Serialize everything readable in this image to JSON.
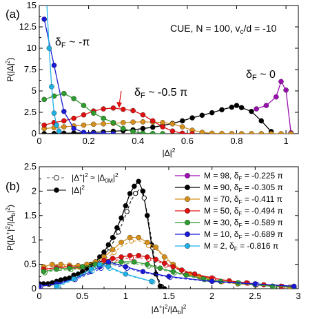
{
  "chart_data": [
    {
      "type": "line",
      "panel_label": "(a)",
      "annotation": "CUE, N = 100,  v_c/d = -10",
      "xlabel": "|Δ|²",
      "ylabel": "P(|Δ|²)",
      "xlim": [
        0,
        1.05
      ],
      "ylim": [
        0,
        15
      ],
      "xticks": [
        "0",
        "0.2",
        "0.4",
        "0.6",
        "0.8",
        "1"
      ],
      "yticks": [
        "0",
        "2.5",
        "5",
        "7.5",
        "10",
        "12.5",
        "15"
      ],
      "annotations": [
        {
          "text": "δ_F ~ -π",
          "color": "#1fb1e6"
        },
        {
          "text": "δ_F ~ -0.5 π",
          "color": "#e01010"
        },
        {
          "text": "δ_F ~ 0",
          "color": "#9b0fb0"
        }
      ],
      "series": [
        {
          "color": "#9b0fb0",
          "x": [
            0.88,
            0.92,
            0.96,
            0.98,
            1.0,
            1.02
          ],
          "y": [
            2.9,
            3.3,
            4.3,
            6.1,
            5.1,
            0.1
          ]
        },
        {
          "color": "#000000",
          "x": [
            0.02,
            0.06,
            0.1,
            0.14,
            0.18,
            0.22,
            0.26,
            0.3,
            0.34,
            0.38,
            0.42,
            0.46,
            0.5,
            0.54,
            0.58,
            0.62,
            0.66,
            0.7,
            0.74,
            0.78,
            0.8,
            0.82,
            0.86,
            0.9,
            0.94
          ],
          "y": [
            0,
            0.02,
            0.05,
            0.08,
            0.1,
            0.15,
            0.2,
            0.28,
            0.35,
            0.45,
            0.6,
            0.75,
            0.95,
            1.2,
            1.5,
            1.85,
            2.15,
            2.45,
            2.8,
            3.1,
            3.3,
            3.05,
            2.6,
            1.5,
            0.25
          ]
        },
        {
          "color": "#d68f1a",
          "x": [
            0.02,
            0.06,
            0.1,
            0.14,
            0.18,
            0.22,
            0.26,
            0.3,
            0.34,
            0.38,
            0.42,
            0.46,
            0.5,
            0.54,
            0.58,
            0.62,
            0.66,
            0.7,
            0.74,
            0.78,
            0.82,
            0.86,
            0.9,
            0.94,
            0.98,
            1.02
          ],
          "y": [
            0.6,
            0.7,
            0.8,
            0.9,
            1.0,
            1.1,
            1.15,
            1.2,
            1.3,
            1.35,
            1.38,
            1.35,
            1.3,
            1.15,
            0.8,
            0.4,
            0.15,
            0.05,
            0.02,
            0.01,
            0,
            0,
            0,
            0,
            0,
            0
          ]
        },
        {
          "color": "#e01010",
          "x": [
            0.02,
            0.06,
            0.1,
            0.14,
            0.18,
            0.22,
            0.26,
            0.3,
            0.34,
            0.38,
            0.42,
            0.46,
            0.5,
            0.54,
            0.58,
            0.62
          ],
          "y": [
            1.0,
            1.3,
            1.5,
            1.8,
            2.2,
            2.65,
            2.9,
            3.0,
            2.85,
            2.7,
            2.2,
            1.5,
            0.8,
            0.3,
            0.05,
            0
          ]
        },
        {
          "color": "#2e9b2e",
          "x": [
            0.02,
            0.06,
            0.1,
            0.14,
            0.18,
            0.22,
            0.26,
            0.3,
            0.34,
            0.38,
            0.42,
            0.46,
            0.5
          ],
          "y": [
            4.0,
            4.4,
            4.7,
            4.1,
            3.3,
            2.4,
            1.8,
            1.3,
            0.6,
            0.25,
            0.05,
            0.02,
            0
          ]
        },
        {
          "color": "#1919d6",
          "x": [
            0.02,
            0.06,
            0.1,
            0.14,
            0.18,
            0.22,
            0.26,
            0.3
          ],
          "y": [
            13.4,
            8.0,
            2.6,
            0.6,
            0.15,
            0.05,
            0.02,
            0
          ]
        },
        {
          "color": "#1fb1e6",
          "x": [
            0.03,
            0.04,
            0.05,
            0.06,
            0.07,
            0.08
          ],
          "y": [
            15.5,
            10.0,
            5.5,
            2.4,
            1.0,
            0.3
          ]
        }
      ]
    },
    {
      "type": "line",
      "panel_label": "(b)",
      "xlabel": "|Δ⁺|²/|Δ_b|²",
      "ylabel": "P(|Δ⁺|²/|Δ_b|²)",
      "xlim": [
        0,
        3
      ],
      "ylim": [
        0,
        2.5
      ],
      "xticks": [
        "0",
        "0.5",
        "1",
        "1.5",
        "2",
        "2.5",
        "3"
      ],
      "yticks": [
        "0",
        "0.5",
        "1",
        "1.5",
        "2",
        "2.5"
      ],
      "legend_left": [
        {
          "label": "|Δ⁺|² ≈ |Δ_0M|²",
          "style": "dashed-open"
        },
        {
          "label": "|Δ|²",
          "style": "solid-filled"
        }
      ],
      "legend_right": [
        {
          "label": "M = 98, δ_F = -0.225 π",
          "color": "#9b0fb0"
        },
        {
          "label": "M = 90, δ_F = -0.305 π",
          "color": "#000000"
        },
        {
          "label": "M = 70, δ_F = -0.411 π",
          "color": "#d68f1a"
        },
        {
          "label": "M = 50, δ_F = -0.494 π",
          "color": "#e01010"
        },
        {
          "label": "M = 30, δ_F = -0.589 π",
          "color": "#2e9b2e"
        },
        {
          "label": "M = 10, δ_F = -0.689 π",
          "color": "#1919d6"
        },
        {
          "label": "M =   2, δ_F = -0.816 π",
          "color": "#1fb1e6"
        }
      ],
      "series": [
        {
          "name": "M = 90",
          "color": "#000000",
          "x": [
            0.0,
            0.05,
            0.1,
            0.15,
            0.2,
            0.25,
            0.3,
            0.35,
            0.4,
            0.45,
            0.5,
            0.55,
            0.6,
            0.65,
            0.7,
            0.75,
            0.8,
            0.85,
            0.9,
            0.95,
            1.0,
            1.05,
            1.1,
            1.15,
            1.2,
            1.25,
            1.3,
            1.35,
            1.4,
            1.45
          ],
          "y": [
            0.1,
            0.1,
            0.1,
            0.12,
            0.15,
            0.18,
            0.2,
            0.22,
            0.28,
            0.3,
            0.35,
            0.42,
            0.5,
            0.55,
            0.65,
            0.75,
            0.9,
            1.05,
            1.25,
            1.45,
            1.7,
            1.95,
            2.1,
            2.2,
            2.0,
            1.5,
            0.9,
            0.3,
            0.05,
            0.0
          ]
        },
        {
          "name": "M = 70",
          "color": "#d68f1a",
          "x": [
            0.05,
            0.15,
            0.25,
            0.35,
            0.45,
            0.55,
            0.65,
            0.75,
            0.85,
            0.95,
            1.05,
            1.15,
            1.25,
            1.35,
            1.45,
            1.55,
            1.65,
            1.75,
            1.85,
            1.95,
            2.1,
            2.3,
            2.5,
            2.7,
            2.9
          ],
          "y": [
            0.45,
            0.5,
            0.5,
            0.48,
            0.47,
            0.5,
            0.55,
            0.65,
            0.8,
            0.95,
            1.05,
            1.05,
            0.95,
            0.85,
            0.65,
            0.5,
            0.38,
            0.3,
            0.25,
            0.2,
            0.15,
            0.1,
            0.08,
            0.05,
            0.03
          ]
        },
        {
          "name": "M = 50",
          "color": "#e01010",
          "x": [
            0.05,
            0.2,
            0.35,
            0.5,
            0.65,
            0.75,
            0.85,
            0.95,
            1.05,
            1.15,
            1.25,
            1.35,
            1.45,
            1.55,
            1.65,
            1.8,
            2.0,
            2.2,
            2.4,
            2.6,
            2.8,
            2.95
          ],
          "y": [
            0.4,
            0.43,
            0.45,
            0.45,
            0.5,
            0.58,
            0.62,
            0.65,
            0.68,
            0.68,
            0.65,
            0.6,
            0.52,
            0.45,
            0.38,
            0.3,
            0.22,
            0.16,
            0.12,
            0.08,
            0.05,
            0.03
          ]
        },
        {
          "name": "M = 30",
          "color": "#2e9b2e",
          "x": [
            0.05,
            0.2,
            0.35,
            0.5,
            0.65,
            0.8,
            0.95,
            1.1,
            1.25,
            1.4,
            1.55,
            1.7,
            1.9,
            2.1,
            2.3,
            2.5,
            2.7,
            2.95
          ],
          "y": [
            0.35,
            0.4,
            0.42,
            0.45,
            0.5,
            0.52,
            0.55,
            0.55,
            0.5,
            0.42,
            0.35,
            0.28,
            0.2,
            0.15,
            0.12,
            0.08,
            0.05,
            0.03
          ]
        },
        {
          "name": "M = 10",
          "color": "#1919d6",
          "x": [
            0.0,
            0.2,
            0.4,
            0.6,
            0.7,
            0.8,
            1.0,
            1.2,
            1.5,
            2.0,
            2.5,
            2.95
          ],
          "y": [
            0.05,
            0.1,
            0.2,
            0.35,
            0.45,
            0.55,
            0.45,
            0.35,
            0.25,
            0.15,
            0.1,
            0.05
          ]
        },
        {
          "name": "M = 2",
          "color": "#1fb1e6",
          "x": [
            0.2,
            0.4,
            0.6,
            0.7,
            0.8,
            1.0,
            1.3
          ],
          "y": [
            0.05,
            0.2,
            0.4,
            0.5,
            0.45,
            0.3,
            0.15
          ]
        }
      ]
    }
  ]
}
